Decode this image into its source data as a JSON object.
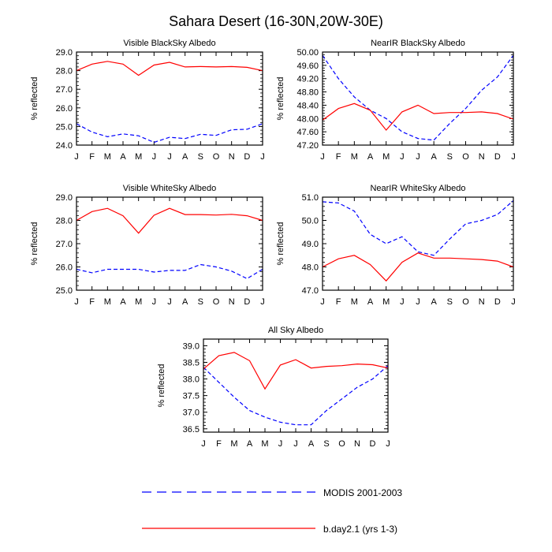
{
  "title": "Sahara Desert (16-30N,20W-30E)",
  "legend": {
    "modis": "MODIS 2001-2003",
    "model": "b.day2.1 (yrs 1-3)"
  },
  "colors": {
    "modis": "#0000ff",
    "model": "#ff0000"
  },
  "chart_data": [
    {
      "type": "line",
      "title": "Visible BlackSky Albedo",
      "xlabel": "",
      "ylabel": "% reflected",
      "categories": [
        "J",
        "F",
        "M",
        "A",
        "M",
        "J",
        "J",
        "A",
        "S",
        "O",
        "N",
        "D",
        "J"
      ],
      "ylim": [
        24.0,
        29.0
      ],
      "yticks": [
        "24.0",
        "25.0",
        "26.0",
        "27.0",
        "28.0",
        "29.0"
      ],
      "series": [
        {
          "name": "MODIS 2001-2003",
          "values": [
            25.15,
            24.7,
            24.45,
            24.6,
            24.5,
            24.15,
            24.42,
            24.35,
            24.58,
            24.52,
            24.82,
            24.85,
            25.15
          ]
        },
        {
          "name": "b.day2.1 (yrs 1-3)",
          "values": [
            28.0,
            28.35,
            28.5,
            28.35,
            27.75,
            28.3,
            28.45,
            28.2,
            28.22,
            28.2,
            28.22,
            28.18,
            28.0
          ]
        }
      ]
    },
    {
      "type": "line",
      "title": "NearIR BlackSky Albedo",
      "xlabel": "",
      "ylabel": "% reflected",
      "categories": [
        "J",
        "F",
        "M",
        "A",
        "M",
        "J",
        "J",
        "A",
        "S",
        "O",
        "N",
        "D",
        "J"
      ],
      "ylim": [
        47.2,
        50.0
      ],
      "yticks": [
        "47.20",
        "47.60",
        "48.00",
        "48.40",
        "48.80",
        "49.20",
        "49.60",
        "50.00"
      ],
      "series": [
        {
          "name": "MODIS 2001-2003",
          "values": [
            49.9,
            49.2,
            48.65,
            48.25,
            48.0,
            47.6,
            47.4,
            47.35,
            47.85,
            48.3,
            48.85,
            49.25,
            49.9
          ]
        },
        {
          "name": "b.day2.1 (yrs 1-3)",
          "values": [
            47.95,
            48.3,
            48.45,
            48.25,
            47.65,
            48.2,
            48.4,
            48.15,
            48.18,
            48.18,
            48.2,
            48.15,
            47.98
          ]
        }
      ]
    },
    {
      "type": "line",
      "title": "Visible WhiteSky Albedo",
      "xlabel": "",
      "ylabel": "% reflected",
      "categories": [
        "J",
        "F",
        "M",
        "A",
        "M",
        "J",
        "J",
        "A",
        "S",
        "O",
        "N",
        "D",
        "J"
      ],
      "ylim": [
        25.0,
        29.0
      ],
      "yticks": [
        "25.0",
        "26.0",
        "27.0",
        "28.0",
        "29.0"
      ],
      "series": [
        {
          "name": "MODIS 2001-2003",
          "values": [
            25.9,
            25.75,
            25.9,
            25.9,
            25.9,
            25.78,
            25.85,
            25.85,
            26.1,
            26.0,
            25.82,
            25.5,
            25.9
          ]
        },
        {
          "name": "b.day2.1 (yrs 1-3)",
          "values": [
            28.0,
            28.38,
            28.52,
            28.2,
            27.45,
            28.22,
            28.52,
            28.25,
            28.25,
            28.23,
            28.26,
            28.2,
            28.0
          ]
        }
      ]
    },
    {
      "type": "line",
      "title": "NearIR WhiteSky Albedo",
      "xlabel": "",
      "ylabel": "% reflected",
      "categories": [
        "J",
        "F",
        "M",
        "A",
        "M",
        "J",
        "J",
        "A",
        "S",
        "O",
        "N",
        "D",
        "J"
      ],
      "ylim": [
        47.0,
        51.0
      ],
      "yticks": [
        "47.0",
        "48.0",
        "49.0",
        "50.0",
        "51.0"
      ],
      "series": [
        {
          "name": "MODIS 2001-2003",
          "values": [
            50.8,
            50.75,
            50.4,
            49.4,
            49.0,
            49.3,
            48.65,
            48.5,
            49.2,
            49.85,
            50.0,
            50.25,
            50.85
          ]
        },
        {
          "name": "b.day2.1 (yrs 1-3)",
          "values": [
            48.0,
            48.35,
            48.5,
            48.1,
            47.4,
            48.2,
            48.6,
            48.38,
            48.38,
            48.35,
            48.32,
            48.25,
            48.0
          ]
        }
      ]
    },
    {
      "type": "line",
      "title": "All Sky Albedo",
      "xlabel": "",
      "ylabel": "% reflected",
      "categories": [
        "J",
        "F",
        "M",
        "A",
        "M",
        "J",
        "J",
        "A",
        "S",
        "O",
        "N",
        "D",
        "J"
      ],
      "ylim": [
        36.4,
        39.2
      ],
      "yticks": [
        "36.5",
        "37.0",
        "37.5",
        "38.0",
        "38.5",
        "39.0"
      ],
      "yticksValues": [
        36.5,
        37.0,
        37.5,
        38.0,
        38.5,
        39.0
      ],
      "series": [
        {
          "name": "MODIS 2001-2003",
          "values": [
            38.35,
            37.9,
            37.45,
            37.05,
            36.85,
            36.7,
            36.62,
            36.62,
            37.05,
            37.4,
            37.75,
            38.0,
            38.4
          ]
        },
        {
          "name": "b.day2.1 (yrs 1-3)",
          "values": [
            38.3,
            38.7,
            38.8,
            38.55,
            37.7,
            38.42,
            38.58,
            38.33,
            38.38,
            38.4,
            38.45,
            38.43,
            38.33
          ]
        }
      ]
    }
  ]
}
